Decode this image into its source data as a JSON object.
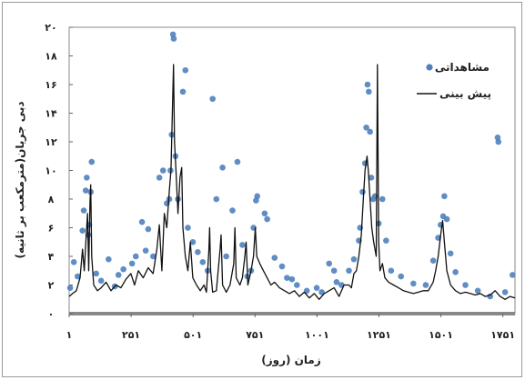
{
  "chart_data": {
    "type": "line",
    "xlabel": "زمان (روز)",
    "ylabel": "دبی جریان(مترمکعب بر ثانیه)",
    "xlim": [
      1,
      1800
    ],
    "ylim": [
      0,
      20
    ],
    "x_ticks": [
      {
        "value": 1,
        "label": "۱"
      },
      {
        "value": 251,
        "label": "۲۵۱"
      },
      {
        "value": 501,
        "label": "۵۰۱"
      },
      {
        "value": 751,
        "label": "۷۵۱"
      },
      {
        "value": 1001,
        "label": "۱۰۰۱"
      },
      {
        "value": 1251,
        "label": "۱۲۵۱"
      },
      {
        "value": 1501,
        "label": "۱۵۰۱"
      },
      {
        "value": 1751,
        "label": "۱۷۵۱"
      }
    ],
    "y_ticks": [
      {
        "value": 0,
        "label": "۰"
      },
      {
        "value": 2,
        "label": "۲"
      },
      {
        "value": 4,
        "label": "۴"
      },
      {
        "value": 6,
        "label": "۶"
      },
      {
        "value": 8,
        "label": "۸"
      },
      {
        "value": 10,
        "label": "۱۰"
      },
      {
        "value": 12,
        "label": "۱۲"
      },
      {
        "value": 14,
        "label": "۱۴"
      },
      {
        "value": 16,
        "label": "۱۶"
      },
      {
        "value": 18,
        "label": "۱۸"
      },
      {
        "value": 20,
        "label": "۲۰"
      }
    ],
    "grid": false,
    "legend_position": "top-right",
    "series": [
      {
        "name": "مشاهداتی",
        "kind": "scatter",
        "color": "#4f81bd",
        "points": [
          [
            5,
            1.8
          ],
          [
            20,
            3.6
          ],
          [
            35,
            2.6
          ],
          [
            55,
            5.8
          ],
          [
            60,
            7.2
          ],
          [
            68,
            8.6
          ],
          [
            72,
            9.5
          ],
          [
            78,
            5.5
          ],
          [
            82,
            6.2
          ],
          [
            88,
            8.5
          ],
          [
            92,
            10.6
          ],
          [
            110,
            2.8
          ],
          [
            130,
            2.3
          ],
          [
            160,
            3.8
          ],
          [
            185,
            1.9
          ],
          [
            200,
            2.7
          ],
          [
            220,
            3.1
          ],
          [
            255,
            3.5
          ],
          [
            270,
            4.0
          ],
          [
            295,
            6.4
          ],
          [
            310,
            4.4
          ],
          [
            320,
            5.9
          ],
          [
            340,
            4.0
          ],
          [
            365,
            9.5
          ],
          [
            380,
            10.0
          ],
          [
            395,
            7.7
          ],
          [
            405,
            8.0
          ],
          [
            410,
            10.0
          ],
          [
            415,
            12.5
          ],
          [
            420,
            19.5
          ],
          [
            423,
            19.2
          ],
          [
            430,
            11.0
          ],
          [
            440,
            8.0
          ],
          [
            460,
            15.5
          ],
          [
            470,
            17.0
          ],
          [
            480,
            6.0
          ],
          [
            500,
            5.0
          ],
          [
            520,
            4.3
          ],
          [
            540,
            3.6
          ],
          [
            560,
            3.0
          ],
          [
            580,
            15.0
          ],
          [
            595,
            8.0
          ],
          [
            620,
            10.2
          ],
          [
            635,
            4.0
          ],
          [
            660,
            7.2
          ],
          [
            680,
            10.6
          ],
          [
            700,
            4.8
          ],
          [
            720,
            2.6
          ],
          [
            735,
            3.0
          ],
          [
            745,
            6.0
          ],
          [
            755,
            7.9
          ],
          [
            760,
            8.2
          ],
          [
            790,
            7.0
          ],
          [
            800,
            6.6
          ],
          [
            830,
            3.9
          ],
          [
            860,
            3.3
          ],
          [
            880,
            2.5
          ],
          [
            900,
            2.4
          ],
          [
            920,
            2.0
          ],
          [
            960,
            1.6
          ],
          [
            1000,
            1.8
          ],
          [
            1020,
            1.5
          ],
          [
            1050,
            3.5
          ],
          [
            1070,
            3.0
          ],
          [
            1080,
            2.2
          ],
          [
            1100,
            2.0
          ],
          [
            1130,
            3.0
          ],
          [
            1150,
            3.8
          ],
          [
            1170,
            5.1
          ],
          [
            1175,
            6.0
          ],
          [
            1185,
            8.5
          ],
          [
            1195,
            10.5
          ],
          [
            1200,
            13.0
          ],
          [
            1205,
            16.0
          ],
          [
            1210,
            15.5
          ],
          [
            1215,
            12.7
          ],
          [
            1220,
            9.5
          ],
          [
            1228,
            8.0
          ],
          [
            1235,
            8.2
          ],
          [
            1250,
            6.3
          ],
          [
            1265,
            8.0
          ],
          [
            1280,
            5.1
          ],
          [
            1300,
            3.0
          ],
          [
            1340,
            2.6
          ],
          [
            1390,
            2.1
          ],
          [
            1440,
            2.0
          ],
          [
            1470,
            3.7
          ],
          [
            1490,
            5.3
          ],
          [
            1500,
            6.2
          ],
          [
            1510,
            6.8
          ],
          [
            1515,
            8.2
          ],
          [
            1525,
            6.6
          ],
          [
            1540,
            4.2
          ],
          [
            1560,
            2.9
          ],
          [
            1600,
            2.0
          ],
          [
            1650,
            1.6
          ],
          [
            1700,
            1.2
          ],
          [
            1730,
            12.3
          ],
          [
            1733,
            12.0
          ],
          [
            1760,
            1.5
          ],
          [
            1790,
            2.7
          ]
        ]
      },
      {
        "name": "پیش بینی",
        "kind": "line",
        "color": "#111111",
        "points": [
          [
            1,
            1.2
          ],
          [
            15,
            1.4
          ],
          [
            30,
            1.6
          ],
          [
            45,
            2.5
          ],
          [
            55,
            4.5
          ],
          [
            62,
            3.0
          ],
          [
            70,
            5.5
          ],
          [
            75,
            7.0
          ],
          [
            80,
            3.0
          ],
          [
            85,
            7.8
          ],
          [
            88,
            9.0
          ],
          [
            92,
            4.0
          ],
          [
            100,
            2.0
          ],
          [
            115,
            1.6
          ],
          [
            130,
            1.8
          ],
          [
            150,
            2.2
          ],
          [
            170,
            1.6
          ],
          [
            190,
            2.0
          ],
          [
            210,
            1.8
          ],
          [
            230,
            2.4
          ],
          [
            250,
            2.8
          ],
          [
            265,
            2.0
          ],
          [
            280,
            3.0
          ],
          [
            300,
            2.5
          ],
          [
            320,
            3.2
          ],
          [
            340,
            2.8
          ],
          [
            355,
            4.5
          ],
          [
            365,
            6.2
          ],
          [
            375,
            3.0
          ],
          [
            385,
            7.0
          ],
          [
            395,
            6.0
          ],
          [
            405,
            8.5
          ],
          [
            412,
            10.0
          ],
          [
            418,
            14.5
          ],
          [
            422,
            17.4
          ],
          [
            426,
            12.0
          ],
          [
            432,
            10.0
          ],
          [
            440,
            7.0
          ],
          [
            448,
            9.5
          ],
          [
            455,
            10.2
          ],
          [
            460,
            6.0
          ],
          [
            470,
            4.0
          ],
          [
            480,
            3.0
          ],
          [
            490,
            5.0
          ],
          [
            500,
            2.5
          ],
          [
            515,
            2.0
          ],
          [
            530,
            1.6
          ],
          [
            545,
            2.0
          ],
          [
            555,
            1.5
          ],
          [
            565,
            4.5
          ],
          [
            568,
            6.0
          ],
          [
            572,
            3.0
          ],
          [
            580,
            1.5
          ],
          [
            595,
            1.6
          ],
          [
            610,
            4.5
          ],
          [
            614,
            5.5
          ],
          [
            620,
            2.0
          ],
          [
            635,
            1.5
          ],
          [
            650,
            2.0
          ],
          [
            665,
            3.5
          ],
          [
            670,
            6.0
          ],
          [
            675,
            2.5
          ],
          [
            690,
            2.0
          ],
          [
            700,
            2.5
          ],
          [
            710,
            4.0
          ],
          [
            715,
            5.0
          ],
          [
            722,
            2.0
          ],
          [
            735,
            3.0
          ],
          [
            745,
            4.0
          ],
          [
            752,
            6.0
          ],
          [
            758,
            4.0
          ],
          [
            770,
            3.5
          ],
          [
            785,
            3.0
          ],
          [
            800,
            2.5
          ],
          [
            815,
            2.0
          ],
          [
            830,
            2.2
          ],
          [
            850,
            1.8
          ],
          [
            870,
            1.6
          ],
          [
            890,
            1.4
          ],
          [
            910,
            1.6
          ],
          [
            930,
            1.2
          ],
          [
            950,
            1.5
          ],
          [
            970,
            1.1
          ],
          [
            990,
            1.4
          ],
          [
            1010,
            1.0
          ],
          [
            1030,
            1.4
          ],
          [
            1050,
            1.6
          ],
          [
            1070,
            1.8
          ],
          [
            1090,
            1.2
          ],
          [
            1110,
            2.0
          ],
          [
            1130,
            2.0
          ],
          [
            1140,
            1.8
          ],
          [
            1150,
            2.8
          ],
          [
            1160,
            3.0
          ],
          [
            1170,
            4.0
          ],
          [
            1180,
            5.5
          ],
          [
            1188,
            8.0
          ],
          [
            1195,
            10.0
          ],
          [
            1203,
            11.0
          ],
          [
            1208,
            10.0
          ],
          [
            1215,
            8.0
          ],
          [
            1222,
            6.0
          ],
          [
            1230,
            5.0
          ],
          [
            1240,
            4.0
          ],
          [
            1245,
            17.4
          ],
          [
            1250,
            5.0
          ],
          [
            1255,
            3.0
          ],
          [
            1265,
            3.5
          ],
          [
            1275,
            2.5
          ],
          [
            1290,
            2.2
          ],
          [
            1310,
            2.0
          ],
          [
            1330,
            1.8
          ],
          [
            1350,
            1.6
          ],
          [
            1370,
            1.5
          ],
          [
            1390,
            1.4
          ],
          [
            1410,
            1.5
          ],
          [
            1430,
            1.6
          ],
          [
            1450,
            1.6
          ],
          [
            1470,
            2.2
          ],
          [
            1480,
            3.0
          ],
          [
            1490,
            4.0
          ],
          [
            1500,
            5.5
          ],
          [
            1508,
            6.5
          ],
          [
            1515,
            5.0
          ],
          [
            1525,
            3.0
          ],
          [
            1540,
            2.0
          ],
          [
            1560,
            1.6
          ],
          [
            1580,
            1.4
          ],
          [
            1600,
            1.5
          ],
          [
            1620,
            1.4
          ],
          [
            1640,
            1.3
          ],
          [
            1660,
            1.4
          ],
          [
            1680,
            1.2
          ],
          [
            1700,
            1.3
          ],
          [
            1720,
            1.6
          ],
          [
            1740,
            1.2
          ],
          [
            1760,
            1.0
          ],
          [
            1780,
            1.2
          ],
          [
            1800,
            1.1
          ]
        ]
      }
    ]
  }
}
